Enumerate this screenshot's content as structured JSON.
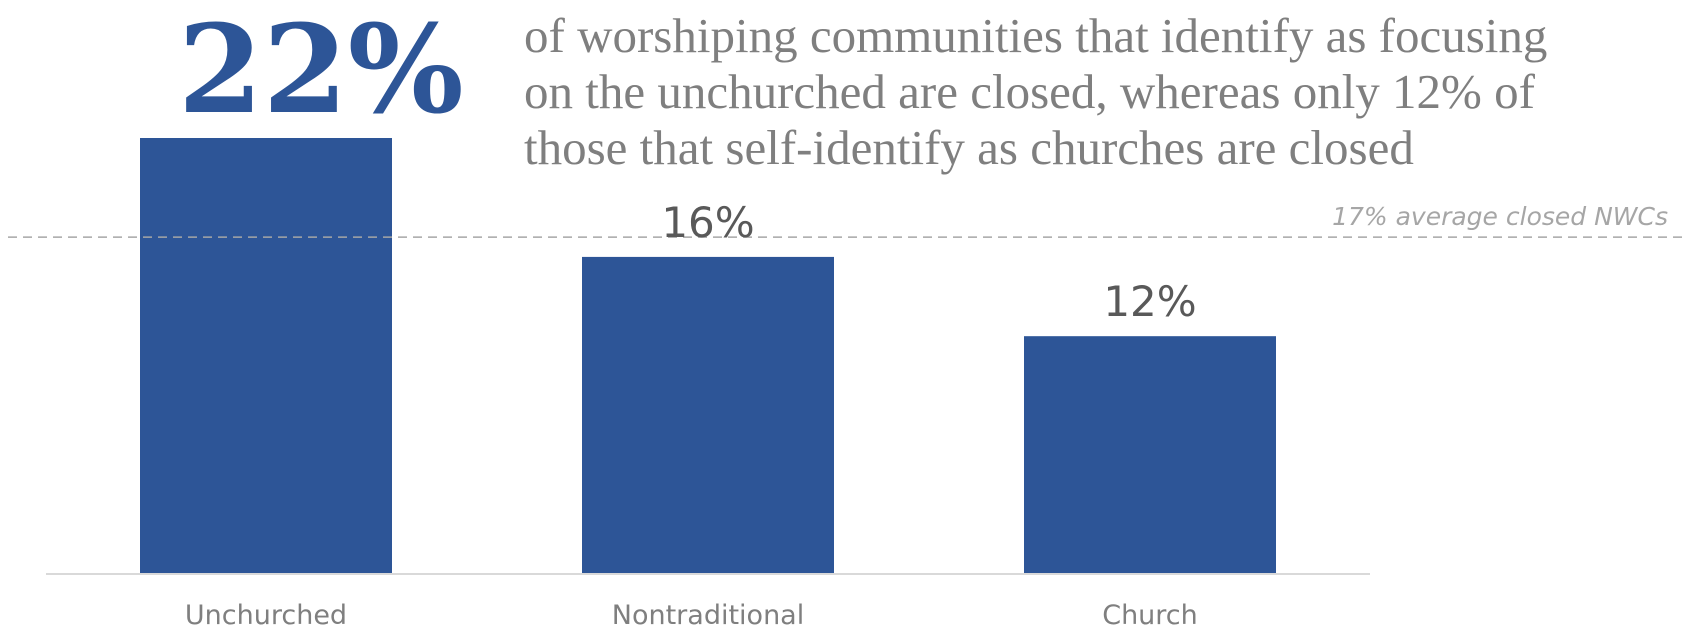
{
  "callout": {
    "big_value": "22%",
    "lines": [
      "of worshiping communities that identify as focusing",
      "on the unchurched are closed, whereas only 12% of",
      "those that self-identify as churches are closed"
    ]
  },
  "chart_data": {
    "type": "bar",
    "categories": [
      "Unchurched",
      "Nontraditional",
      "Church"
    ],
    "values": [
      22,
      16,
      12
    ],
    "data_labels": [
      "",
      "16%",
      "12%"
    ],
    "ylim": [
      0,
      22
    ],
    "unit": "%",
    "grid": false,
    "reference_line": {
      "value": 17,
      "label": "17% average closed NWCs"
    }
  },
  "colors": {
    "bar": "#2d5597",
    "callout_value": "#2d5597",
    "callout_text": "#7f7f7f",
    "data_label": "#595959",
    "category_label": "#7f7f7f",
    "reference": "#a6a6a6"
  }
}
